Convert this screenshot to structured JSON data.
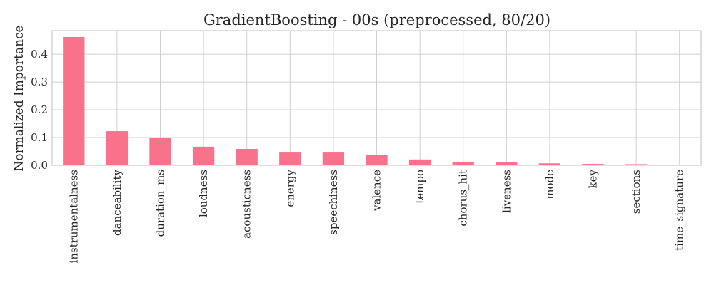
{
  "chart_data": {
    "type": "bar",
    "title": "GradientBoosting - 00s (preprocessed, 80/20)",
    "xlabel": "",
    "ylabel": "Normalized Importance",
    "categories": [
      "instrumentalness",
      "danceability",
      "duration_ms",
      "loudness",
      "acousticness",
      "energy",
      "speechiness",
      "valence",
      "tempo",
      "chorus_hit",
      "liveness",
      "mode",
      "key",
      "sections",
      "time_signature"
    ],
    "values": [
      0.462,
      0.123,
      0.098,
      0.067,
      0.059,
      0.046,
      0.046,
      0.036,
      0.021,
      0.013,
      0.012,
      0.007,
      0.005,
      0.004,
      0.002
    ],
    "ylim": [
      0,
      0.485
    ],
    "yticks": [
      "0.0",
      "0.1",
      "0.2",
      "0.3",
      "0.4"
    ],
    "grid": true,
    "colors": {
      "bar": "#f7728a"
    }
  }
}
